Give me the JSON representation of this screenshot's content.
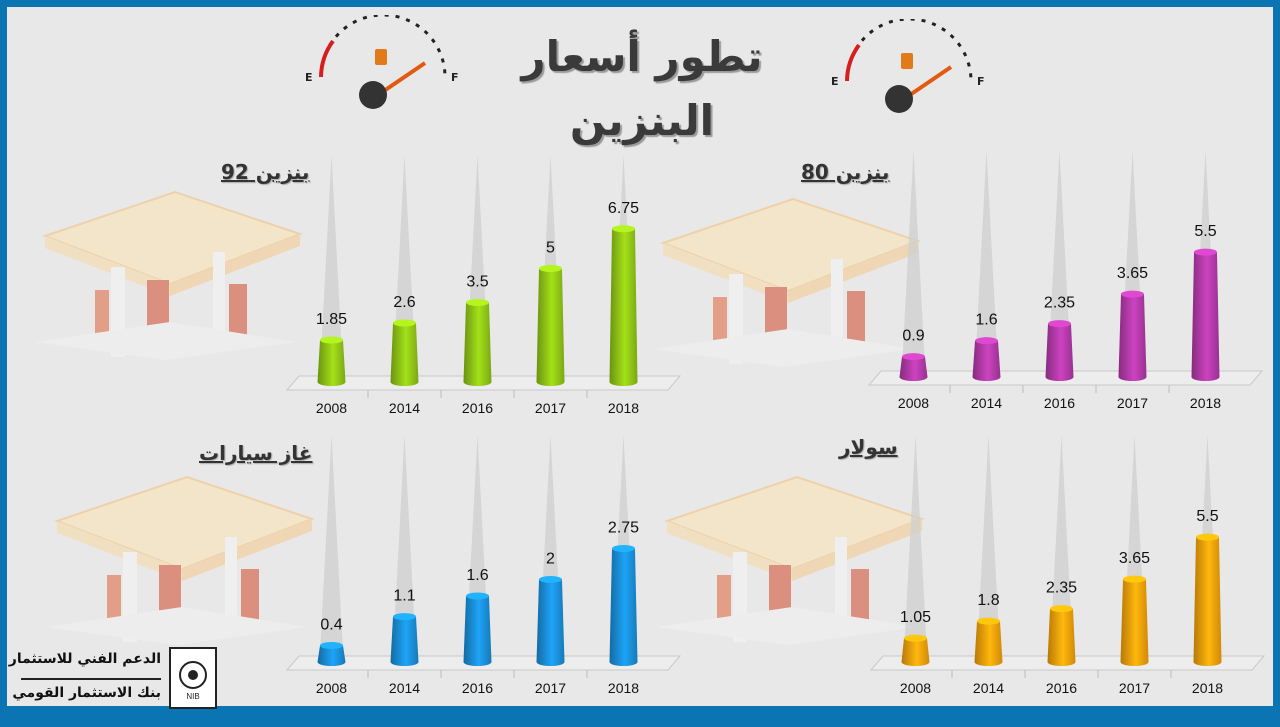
{
  "title": "تطور أسعار البنزين",
  "gauge_labels": {
    "empty": "E",
    "full": "F"
  },
  "footer": {
    "line1": "الدعم الفني للاستثمار",
    "line2": "بنك الاستثمار القومي"
  },
  "logo_text": "NIB",
  "colors": {
    "frame": "#0b74b3",
    "panel_92": "#8fc416",
    "panel_80": "#b23aa8",
    "panel_gas": "#1a8fd8",
    "panel_diesel": "#f5a00a"
  },
  "chart_data": [
    {
      "id": "b92",
      "type": "bar",
      "title": "بنزين 92",
      "categories": [
        "2008",
        "2014",
        "2016",
        "2017",
        "2018"
      ],
      "values": [
        1.85,
        2.6,
        3.5,
        5,
        6.75
      ],
      "value_labels": [
        "1.85",
        "2.6",
        "3.5",
        "5",
        "6.75"
      ],
      "color": "#8fc416",
      "ylim": [
        0,
        10
      ]
    },
    {
      "id": "b80",
      "type": "bar",
      "title": "بنزين 80",
      "categories": [
        "2008",
        "2014",
        "2016",
        "2017",
        "2018"
      ],
      "values": [
        0.9,
        1.6,
        2.35,
        3.65,
        5.5
      ],
      "value_labels": [
        "0.9",
        "1.6",
        "2.35",
        "3.65",
        "5.5"
      ],
      "color": "#b23aa8",
      "ylim": [
        0,
        10
      ]
    },
    {
      "id": "gas",
      "type": "bar",
      "title": "غاز سيارات",
      "categories": [
        "2008",
        "2014",
        "2016",
        "2017",
        "2018"
      ],
      "values": [
        0.4,
        1.1,
        1.6,
        2,
        2.75
      ],
      "value_labels": [
        "0.4",
        "1.1",
        "1.6",
        "2",
        "2.75"
      ],
      "color": "#1a8fd8",
      "ylim": [
        0,
        5.5
      ]
    },
    {
      "id": "diesel",
      "type": "bar",
      "title": "سولار",
      "categories": [
        "2008",
        "2014",
        "2016",
        "2017",
        "2018"
      ],
      "values": [
        1.05,
        1.8,
        2.35,
        3.65,
        5.5
      ],
      "value_labels": [
        "1.05",
        "1.8",
        "2.35",
        "3.65",
        "5.5"
      ],
      "color": "#f5a00a",
      "ylim": [
        0,
        10
      ]
    }
  ]
}
